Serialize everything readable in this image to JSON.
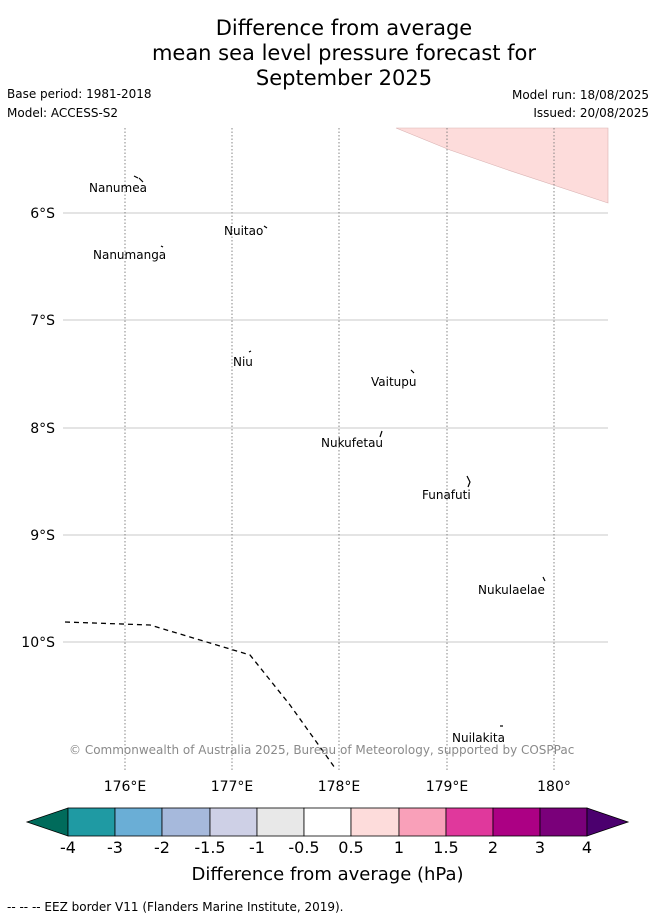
{
  "title": {
    "line1": "Difference from average",
    "line2": "mean sea level pressure forecast for",
    "line3": "September 2025"
  },
  "meta": {
    "base_period": "Base period: 1981-2018",
    "model": "Model: ACCESS-S2",
    "model_run": "Model run: 18/08/2025",
    "issued": "Issued: 20/08/2025"
  },
  "map": {
    "lat_labels": [
      "6°S",
      "7°S",
      "8°S",
      "9°S",
      "10°S"
    ],
    "lon_labels": [
      "176°E",
      "177°E",
      "178°E",
      "179°E",
      "180°"
    ],
    "places": [
      {
        "name": "Nanumea"
      },
      {
        "name": "Nuitao"
      },
      {
        "name": "Nanumanga"
      },
      {
        "name": "Niu"
      },
      {
        "name": "Vaitupu"
      },
      {
        "name": "Nukufetau"
      },
      {
        "name": "Funafuti"
      },
      {
        "name": "Nukulaelae"
      },
      {
        "name": "Nuilakita"
      }
    ],
    "copyright": "© Commonwealth of Australia 2025, Bureau of Meteorology, supported by COSPPac",
    "shaded_category": "0.5 to 1",
    "shaded_color": "#fddcdb"
  },
  "colorbar": {
    "labels": [
      "-4",
      "-3",
      "-2",
      "-1.5",
      "-1",
      "-0.5",
      "0.5",
      "1",
      "1.5",
      "2",
      "3",
      "4"
    ],
    "colors": [
      "#006b5b",
      "#1f9aa3",
      "#6aaed6",
      "#a6b9dc",
      "#ced0e6",
      "#e8e8e8",
      "#ffffff",
      "#fddcdb",
      "#f9a0b9",
      "#e0389c",
      "#ac0084",
      "#7a007a",
      "#4b006e"
    ],
    "title": "Difference from average (hPa)"
  },
  "footer": "--  --  -- EEZ border V11 (Flanders Marine Institute, 2019)."
}
